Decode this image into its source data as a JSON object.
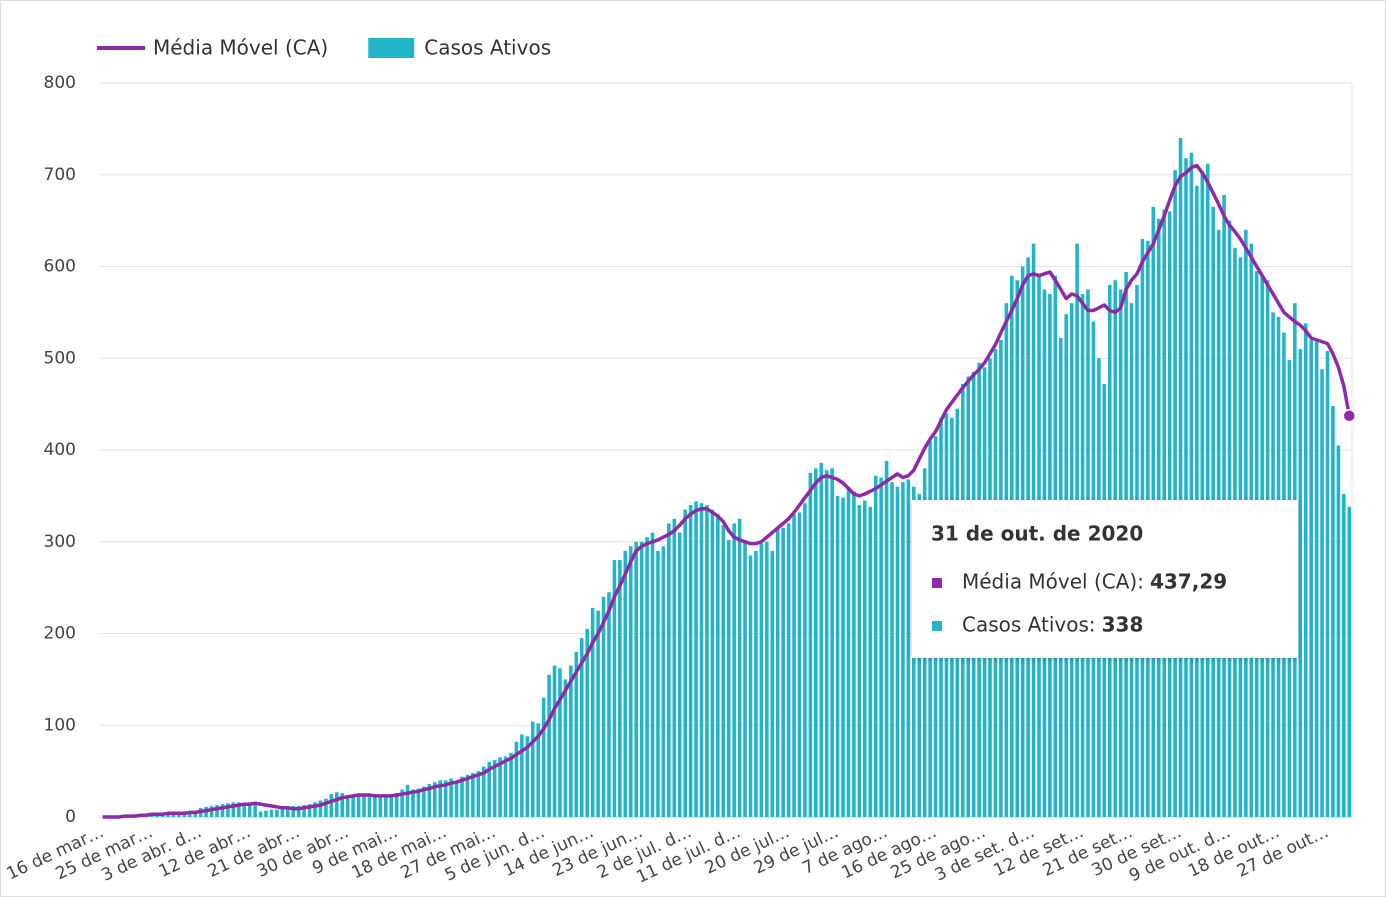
{
  "chart_data": {
    "type": "bar",
    "categories": [
      "16 de mar…",
      null,
      null,
      null,
      null,
      null,
      null,
      null,
      null,
      "25 de mar…",
      null,
      null,
      null,
      null,
      null,
      null,
      null,
      null,
      "3 de abr. d…",
      null,
      null,
      null,
      null,
      null,
      null,
      null,
      null,
      "12 de abr…",
      null,
      null,
      null,
      null,
      null,
      null,
      null,
      null,
      "21 de abr…",
      null,
      null,
      null,
      null,
      null,
      null,
      null,
      null,
      "30 de abr…",
      null,
      null,
      null,
      null,
      null,
      null,
      null,
      null,
      "9 de mai…",
      null,
      null,
      null,
      null,
      null,
      null,
      null,
      null,
      "18 de mai…",
      null,
      null,
      null,
      null,
      null,
      null,
      null,
      null,
      "27 de mai…",
      null,
      null,
      null,
      null,
      null,
      null,
      null,
      null,
      "5 de jun. d…",
      null,
      null,
      null,
      null,
      null,
      null,
      null,
      null,
      "14 de jun…",
      null,
      null,
      null,
      null,
      null,
      null,
      null,
      null,
      "23 de jun…",
      null,
      null,
      null,
      null,
      null,
      null,
      null,
      null,
      "2 de jul. d…",
      null,
      null,
      null,
      null,
      null,
      null,
      null,
      null,
      "11 de jul. d…",
      null,
      null,
      null,
      null,
      null,
      null,
      null,
      null,
      "20 de jul…",
      null,
      null,
      null,
      null,
      null,
      null,
      null,
      null,
      "29 de jul…",
      null,
      null,
      null,
      null,
      null,
      null,
      null,
      null,
      "7 de ago…",
      null,
      null,
      null,
      null,
      null,
      null,
      null,
      null,
      "16 de ago…",
      null,
      null,
      null,
      null,
      null,
      null,
      null,
      null,
      "25 de ago…",
      null,
      null,
      null,
      null,
      null,
      null,
      null,
      null,
      "3 de set. d…",
      null,
      null,
      null,
      null,
      null,
      null,
      null,
      null,
      "12 de set…",
      null,
      null,
      null,
      null,
      null,
      null,
      null,
      null,
      "21 de set…",
      null,
      null,
      null,
      null,
      null,
      null,
      null,
      null,
      "30 de set…",
      null,
      null,
      null,
      null,
      null,
      null,
      null,
      null,
      "9 de out. d…",
      null,
      null,
      null,
      null,
      null,
      null,
      null,
      null,
      "18 de out…",
      null,
      null,
      null,
      null,
      null,
      null,
      null,
      null,
      "27 de out…",
      null,
      null,
      null,
      null
    ],
    "series": [
      {
        "name": "Média Móvel (CA)",
        "type": "line",
        "color": "#8e2aa8",
        "values": [
          0,
          0,
          0,
          0,
          1,
          1,
          1,
          2,
          2,
          3,
          3,
          3,
          4,
          4,
          4,
          4,
          5,
          5,
          6,
          7,
          8,
          9,
          10,
          11,
          12,
          13,
          14,
          14,
          15,
          14,
          13,
          12,
          11,
          10,
          10,
          9,
          9,
          10,
          11,
          12,
          13,
          15,
          17,
          19,
          21,
          22,
          23,
          24,
          24,
          24,
          23,
          23,
          23,
          23,
          24,
          25,
          26,
          27,
          28,
          30,
          31,
          33,
          34,
          35,
          37,
          38,
          40,
          42,
          44,
          46,
          48,
          52,
          55,
          58,
          61,
          64,
          68,
          72,
          76,
          82,
          88,
          96,
          106,
          118,
          128,
          138,
          148,
          158,
          168,
          178,
          190,
          200,
          212,
          225,
          240,
          252,
          265,
          278,
          290,
          295,
          298,
          300,
          302,
          305,
          308,
          312,
          318,
          325,
          330,
          334,
          336,
          336,
          332,
          328,
          322,
          312,
          305,
          302,
          300,
          298,
          298,
          300,
          305,
          310,
          315,
          320,
          325,
          332,
          340,
          348,
          356,
          364,
          370,
          372,
          370,
          368,
          364,
          358,
          352,
          350,
          352,
          355,
          358,
          362,
          366,
          370,
          374,
          370,
          372,
          378,
          390,
          402,
          412,
          420,
          432,
          444,
          452,
          460,
          468,
          475,
          482,
          488,
          495,
          505,
          515,
          528,
          540,
          552,
          565,
          580,
          590,
          592,
          590,
          592,
          594,
          585,
          575,
          565,
          570,
          568,
          560,
          552,
          552,
          555,
          558,
          552,
          550,
          555,
          575,
          585,
          592,
          605,
          615,
          625,
          640,
          655,
          672,
          688,
          698,
          702,
          708,
          710,
          702,
          692,
          680,
          668,
          655,
          645,
          638,
          630,
          620,
          610,
          600,
          590,
          580,
          570,
          560,
          550,
          545,
          540,
          536,
          530,
          522,
          520,
          518,
          516,
          505,
          490,
          470,
          437.29
        ]
      },
      {
        "name": "Casos Ativos",
        "type": "bar",
        "color": "#22b5c8",
        "values": [
          0,
          0,
          1,
          1,
          2,
          2,
          3,
          3,
          3,
          4,
          4,
          4,
          4,
          5,
          5,
          5,
          6,
          6,
          10,
          11,
          12,
          13,
          14,
          15,
          16,
          16,
          15,
          16,
          15,
          6,
          7,
          8,
          8,
          9,
          10,
          12,
          12,
          13,
          14,
          16,
          18,
          20,
          25,
          27,
          26,
          24,
          22,
          23,
          23,
          22,
          22,
          23,
          23,
          25,
          26,
          30,
          35,
          30,
          31,
          33,
          36,
          38,
          40,
          40,
          42,
          38,
          44,
          46,
          48,
          50,
          55,
          60,
          62,
          65,
          66,
          70,
          82,
          90,
          88,
          104,
          102,
          130,
          155,
          165,
          162,
          150,
          165,
          180,
          195,
          205,
          228,
          225,
          240,
          245,
          280,
          280,
          290,
          295,
          300,
          300,
          305,
          310,
          290,
          295,
          320,
          325,
          310,
          335,
          340,
          344,
          342,
          340,
          335,
          330,
          318,
          302,
          320,
          325,
          300,
          285,
          290,
          298,
          300,
          290,
          315,
          315,
          320,
          330,
          332,
          342,
          375,
          380,
          386,
          378,
          380,
          350,
          348,
          360,
          355,
          340,
          345,
          338,
          372,
          370,
          388,
          365,
          360,
          365,
          368,
          360,
          352,
          380,
          410,
          415,
          435,
          440,
          435,
          445,
          472,
          480,
          485,
          495,
          490,
          500,
          510,
          520,
          560,
          590,
          585,
          600,
          610,
          625,
          590,
          575,
          570,
          590,
          522,
          548,
          560,
          625,
          570,
          575,
          540,
          500,
          472,
          580,
          585,
          575,
          594,
          560,
          580,
          630,
          628,
          665,
          652,
          662,
          660,
          705,
          740,
          718,
          724,
          688,
          704,
          712,
          665,
          640,
          678,
          650,
          620,
          610,
          640,
          625,
          595,
          590,
          585,
          550,
          545,
          528,
          498,
          560,
          510,
          538,
          520,
          518,
          488,
          508,
          448,
          405,
          352,
          338
        ]
      }
    ],
    "ylim": [
      0,
      800
    ],
    "yticks": [
      0,
      100,
      200,
      300,
      400,
      500,
      600,
      700,
      800
    ],
    "grid": true,
    "legend": "top-left",
    "tooltip": {
      "title": "31 de out. de 2020",
      "lines": [
        {
          "label": "Média Móvel (CA):",
          "value": "437,29"
        },
        {
          "label": "Casos Ativos:",
          "value": "338"
        }
      ]
    }
  }
}
